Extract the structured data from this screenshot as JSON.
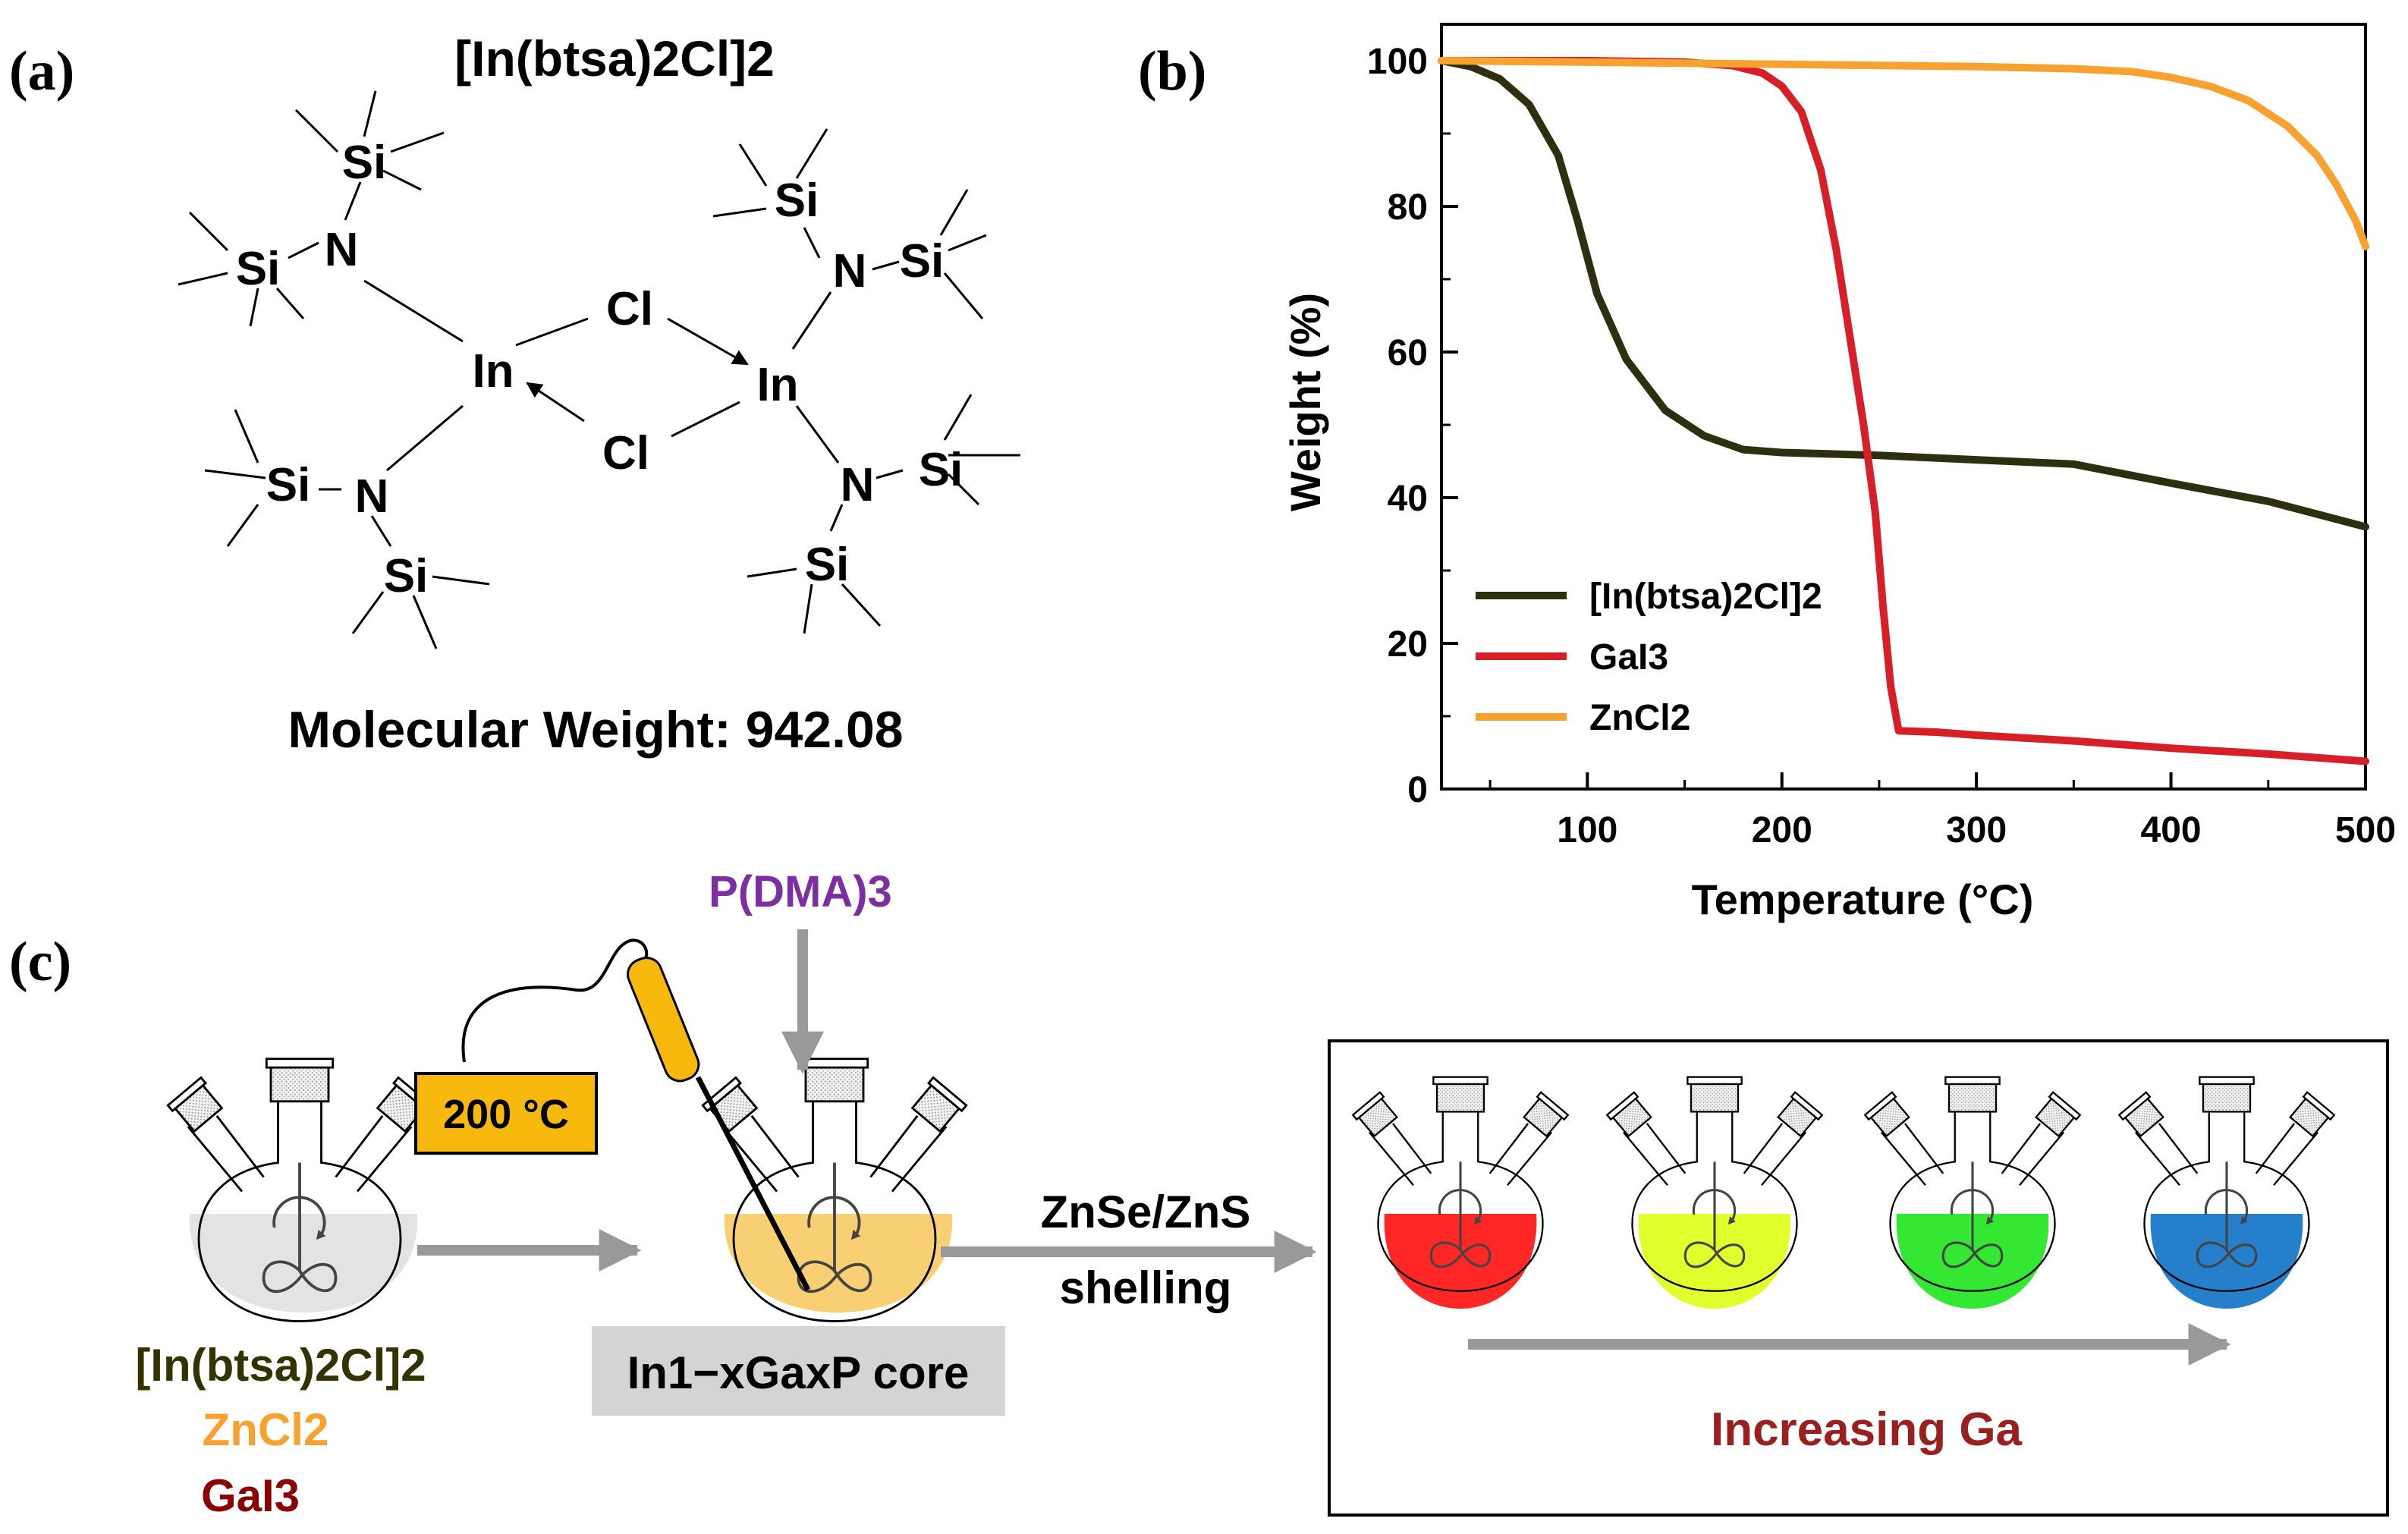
{
  "panel_labels": {
    "a": "(a)",
    "b": "(b)",
    "c": "(c)"
  },
  "panel_a": {
    "title": "[In(btsa)2Cl]2",
    "molecular_weight_label": "Molecular Weight: 942.08",
    "atoms": {
      "si": "Si",
      "n": "N",
      "in": "In",
      "cl": "Cl"
    }
  },
  "chart_data": {
    "type": "line",
    "xlabel": "Temperature (°C)",
    "ylabel": "Weight (%)",
    "xlim": [
      25,
      500
    ],
    "ylim": [
      0,
      105
    ],
    "x_ticks": [
      100,
      200,
      300,
      400,
      500
    ],
    "y_ticks": [
      0,
      20,
      40,
      60,
      80,
      100
    ],
    "legend_position": "lower-left",
    "series": [
      {
        "name": "[In(btsa)2Cl]2",
        "color": "#2e2f0f",
        "points": [
          [
            25,
            100
          ],
          [
            40,
            99.2
          ],
          [
            55,
            97.5
          ],
          [
            70,
            94
          ],
          [
            85,
            87
          ],
          [
            95,
            78
          ],
          [
            105,
            68
          ],
          [
            120,
            59
          ],
          [
            140,
            52
          ],
          [
            160,
            48.5
          ],
          [
            180,
            46.6
          ],
          [
            200,
            46.2
          ],
          [
            250,
            45.8
          ],
          [
            300,
            45.2
          ],
          [
            350,
            44.6
          ],
          [
            400,
            42
          ],
          [
            450,
            39.5
          ],
          [
            500,
            36
          ]
        ]
      },
      {
        "name": "GaI3",
        "color": "#d61f26",
        "points": [
          [
            25,
            100
          ],
          [
            100,
            100
          ],
          [
            150,
            99.8
          ],
          [
            175,
            99.3
          ],
          [
            190,
            98.3
          ],
          [
            200,
            96.5
          ],
          [
            210,
            93
          ],
          [
            220,
            85
          ],
          [
            228,
            74
          ],
          [
            235,
            62
          ],
          [
            242,
            50
          ],
          [
            248,
            38
          ],
          [
            252,
            25
          ],
          [
            256,
            14
          ],
          [
            260,
            8
          ],
          [
            280,
            7.8
          ],
          [
            300,
            7.4
          ],
          [
            350,
            6.6
          ],
          [
            400,
            5.6
          ],
          [
            450,
            4.8
          ],
          [
            500,
            3.8
          ]
        ]
      },
      {
        "name": "ZnCl2",
        "color": "#f7a230",
        "points": [
          [
            25,
            100
          ],
          [
            100,
            99.8
          ],
          [
            200,
            99.5
          ],
          [
            300,
            99.2
          ],
          [
            350,
            98.9
          ],
          [
            380,
            98.5
          ],
          [
            400,
            97.7
          ],
          [
            420,
            96.5
          ],
          [
            440,
            94.5
          ],
          [
            460,
            91
          ],
          [
            475,
            87
          ],
          [
            485,
            83
          ],
          [
            495,
            78
          ],
          [
            500,
            74.5
          ]
        ]
      }
    ]
  },
  "panel_c": {
    "precursor_line1": "[In(btsa)2Cl]2",
    "precursor_line2": "ZnCl2",
    "precursor_line3": "GaI3",
    "precursor_colors": [
      "#333300",
      "#f7a230",
      "#8b0000"
    ],
    "temperature_label": "200 °C",
    "phosphorus_source": "P(DMA)3",
    "phosphorus_color": "#7b2fa3",
    "core_label": "In1−xGaxP core",
    "shelling_label_1": "ZnSe/ZnS",
    "shelling_label_2": "shelling",
    "increasing_label": "Increasing Ga",
    "increasing_color": "#9a1f1f",
    "flask_colors": [
      "#e0e0e0",
      "#f9cc6b",
      "#ff1a1a",
      "#dfff22",
      "#28e628",
      "#1a78c8"
    ]
  }
}
